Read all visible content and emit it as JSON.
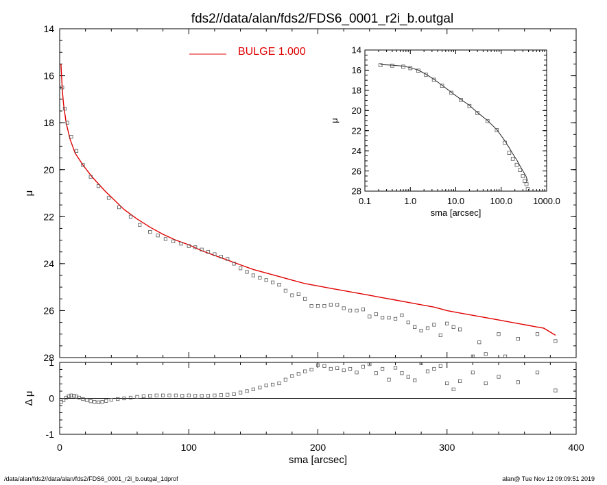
{
  "title": "fds2//data/alan/fds2/FDS6_0001_r2i_b.outgal",
  "footer_left": "/data/alan/fds2//data/alan/fds2/FDS6_0001_r2i_b.outgal_1dprof",
  "footer_right": "alan@  Tue Nov 12 09:09:51 2019",
  "colors": {
    "model": "#e00000",
    "data": "#555555",
    "axes": "#000000"
  },
  "chart_data": [
    {
      "type": "scatter",
      "panel": "main",
      "xlabel": "sma [arcsec]",
      "ylabel": "μ",
      "xlim": [
        0,
        400
      ],
      "ylim": [
        28,
        14
      ],
      "y_inverted": true,
      "x_tick_labels": [
        "0",
        "100",
        "200",
        "300",
        "400"
      ],
      "y_tick_labels": [
        "14",
        "16",
        "18",
        "20",
        "22",
        "24",
        "26",
        "28"
      ],
      "legend": {
        "label": "BULGE  1.000",
        "placement": "top-center"
      },
      "series": [
        {
          "name": "BULGE  1.000",
          "style": "line",
          "x": [
            1,
            2,
            3,
            5,
            8,
            12,
            18,
            25,
            35,
            50,
            60,
            70,
            80,
            90,
            100,
            110,
            120,
            130,
            140,
            150,
            160,
            170,
            180,
            190,
            200,
            210,
            220,
            230,
            240,
            250,
            260,
            270,
            280,
            290,
            300,
            310,
            320,
            330,
            340,
            350,
            360,
            370,
            375,
            384
          ],
          "y": [
            15.5,
            16.6,
            17.2,
            18.0,
            18.7,
            19.3,
            19.8,
            20.3,
            20.9,
            21.7,
            22.1,
            22.45,
            22.75,
            23.0,
            23.2,
            23.45,
            23.65,
            23.85,
            24.05,
            24.25,
            24.4,
            24.55,
            24.7,
            24.85,
            24.95,
            25.05,
            25.15,
            25.25,
            25.35,
            25.45,
            25.55,
            25.65,
            25.75,
            25.85,
            26.0,
            26.1,
            26.2,
            26.3,
            26.4,
            26.5,
            26.6,
            26.7,
            26.75,
            27.05
          ]
        },
        {
          "style": "open-squares",
          "x": [
            2,
            4,
            6,
            9,
            13,
            18,
            24,
            30,
            38,
            46,
            55,
            62,
            70,
            76,
            82,
            88,
            94,
            100,
            105,
            110,
            115,
            120,
            125,
            130,
            135,
            140,
            145,
            150,
            155,
            160,
            165,
            170,
            175,
            180,
            185,
            190,
            195,
            200,
            205,
            210,
            215,
            220,
            225,
            230,
            235,
            240,
            245,
            250,
            255,
            260,
            265,
            270,
            275,
            280,
            285,
            290,
            295,
            300,
            305,
            310,
            320,
            325,
            330,
            340,
            345,
            355,
            370,
            384
          ],
          "y": [
            16.5,
            17.4,
            18.0,
            18.6,
            19.2,
            19.8,
            20.3,
            20.7,
            21.2,
            21.6,
            22.0,
            22.35,
            22.65,
            22.8,
            22.95,
            23.05,
            23.15,
            23.25,
            23.3,
            23.4,
            23.5,
            23.6,
            23.7,
            23.8,
            24.0,
            24.2,
            24.35,
            24.5,
            24.6,
            24.7,
            24.8,
            24.9,
            25.15,
            25.35,
            25.3,
            25.5,
            25.8,
            25.8,
            25.8,
            25.75,
            25.75,
            25.9,
            26.0,
            26.0,
            25.95,
            26.25,
            26.15,
            26.3,
            26.3,
            26.35,
            26.2,
            26.5,
            26.7,
            26.85,
            26.75,
            26.6,
            27.05,
            26.55,
            26.7,
            26.8,
            27.95,
            27.35,
            27.85,
            27.0,
            27.95,
            27.2,
            27.0,
            27.3
          ]
        }
      ]
    },
    {
      "type": "scatter",
      "panel": "residual",
      "xlabel": "sma [arcsec]",
      "ylabel": "Δ μ",
      "xlim": [
        0,
        400
      ],
      "ylim": [
        -1,
        1
      ],
      "x_tick_labels": [
        "0",
        "100",
        "200",
        "300",
        "400"
      ],
      "y_tick_labels": [
        "-1",
        "0",
        "1"
      ],
      "zero_line": true,
      "series": [
        {
          "style": "open-squares",
          "x": [
            1,
            3,
            5,
            7,
            9,
            11,
            13,
            15,
            18,
            21,
            24,
            27,
            30,
            33,
            36,
            40,
            45,
            50,
            55,
            60,
            65,
            70,
            75,
            80,
            85,
            90,
            95,
            100,
            105,
            110,
            115,
            120,
            125,
            130,
            135,
            140,
            145,
            150,
            155,
            160,
            165,
            170,
            175,
            180,
            185,
            190,
            195,
            200,
            205,
            210,
            215,
            220,
            225,
            230,
            235,
            240,
            245,
            250,
            255,
            260,
            265,
            270,
            275,
            280,
            285,
            290,
            295,
            300,
            305,
            310,
            320,
            330,
            340,
            355,
            370,
            384
          ],
          "y": [
            -0.1,
            -0.05,
            0.02,
            0.06,
            0.08,
            0.07,
            0.05,
            0.02,
            -0.02,
            -0.05,
            -0.08,
            -0.1,
            -0.11,
            -0.1,
            -0.07,
            -0.04,
            -0.02,
            0.0,
            0.02,
            0.04,
            0.06,
            0.07,
            0.08,
            0.08,
            0.08,
            0.08,
            0.07,
            0.08,
            0.07,
            0.07,
            0.07,
            0.08,
            0.09,
            0.1,
            0.12,
            0.16,
            0.2,
            0.25,
            0.3,
            0.36,
            0.38,
            0.42,
            0.52,
            0.62,
            0.68,
            0.75,
            0.8,
            0.92,
            0.9,
            0.82,
            0.84,
            0.78,
            0.82,
            0.72,
            0.88,
            0.95,
            0.7,
            0.82,
            0.52,
            0.85,
            0.7,
            0.6,
            0.5,
            0.98,
            0.75,
            0.82,
            0.9,
            0.42,
            0.25,
            0.48,
            0.72,
            0.42,
            0.6,
            0.45,
            0.72,
            0.22
          ]
        }
      ]
    },
    {
      "type": "scatter",
      "panel": "inset",
      "xlabel": "sma [arcsec]",
      "ylabel": "μ",
      "x_scale": "log",
      "xlim": [
        0.1,
        1000
      ],
      "ylim": [
        28,
        14
      ],
      "y_inverted": true,
      "x_tick_labels": [
        "0.1",
        "1.0",
        "10.0",
        "100.0",
        "1000.0"
      ],
      "y_tick_labels": [
        "14",
        "16",
        "18",
        "20",
        "22",
        "24",
        "26",
        "28"
      ],
      "series": [
        {
          "style": "line",
          "x": [
            0.22,
            0.4,
            0.7,
            1.0,
            1.5,
            2.2,
            3.3,
            5,
            8,
            13,
            20,
            30,
            50,
            80,
            120,
            150,
            180,
            220,
            260,
            300,
            350,
            380
          ],
          "y": [
            15.45,
            15.5,
            15.6,
            15.75,
            16.0,
            16.4,
            16.9,
            17.5,
            18.2,
            18.9,
            19.5,
            20.2,
            21.0,
            21.9,
            23.0,
            23.7,
            24.3,
            24.9,
            25.5,
            26.0,
            26.5,
            27.0
          ]
        },
        {
          "style": "open-squares",
          "x": [
            0.22,
            0.4,
            0.7,
            1.0,
            1.5,
            2.2,
            3.3,
            5,
            8,
            13,
            20,
            30,
            50,
            80,
            120,
            150,
            180,
            220,
            260,
            300,
            330,
            360,
            385
          ],
          "y": [
            15.5,
            15.55,
            15.65,
            15.8,
            16.05,
            16.45,
            16.95,
            17.55,
            18.25,
            18.95,
            19.55,
            20.25,
            21.05,
            21.95,
            23.2,
            24.2,
            24.8,
            25.4,
            25.9,
            26.5,
            27.0,
            27.3,
            27.8
          ]
        }
      ]
    }
  ]
}
